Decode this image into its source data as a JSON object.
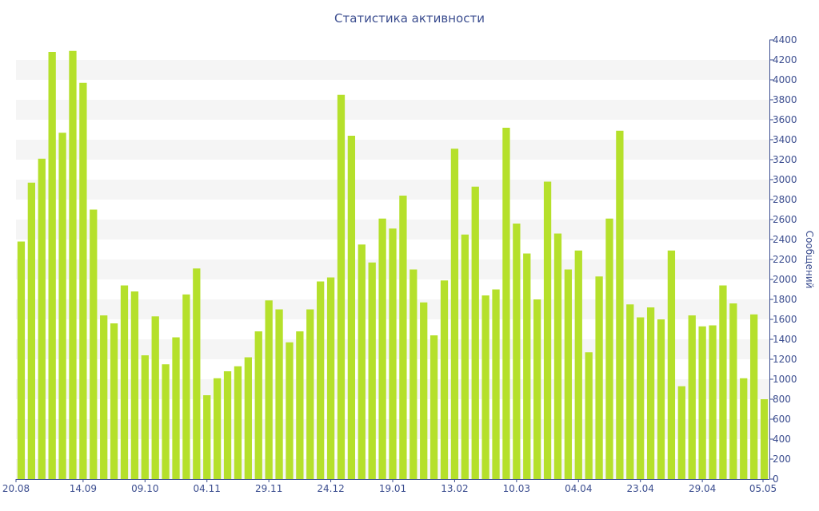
{
  "chart_data": {
    "type": "bar",
    "title": "Статистика активности",
    "ylabel": "Сообщений",
    "ylim": [
      0,
      4400
    ],
    "y_ticks": [
      0,
      200,
      400,
      600,
      800,
      1000,
      1200,
      1400,
      1600,
      1800,
      2000,
      2200,
      2400,
      2600,
      2800,
      3000,
      3200,
      3400,
      3600,
      3800,
      4000,
      4200,
      4400
    ],
    "x_tick_labels": [
      "20.08",
      "14.09",
      "09.10",
      "04.11",
      "29.11",
      "24.12",
      "19.01",
      "13.02",
      "10.03",
      "04.04",
      "23.04",
      "29.04",
      "05.05"
    ],
    "x_tick_bar_index": [
      0,
      6,
      12,
      18,
      24,
      30,
      36,
      42,
      48,
      54,
      60,
      66,
      72
    ],
    "bar_color": "#b5e02b",
    "grid": "horizontal alternating bands",
    "y_axis_position": "right",
    "values": [
      2380,
      2970,
      3210,
      4280,
      3470,
      4290,
      3970,
      2700,
      1640,
      1560,
      1940,
      1880,
      1240,
      1630,
      1150,
      1420,
      1850,
      2110,
      840,
      1010,
      1080,
      1130,
      1220,
      1480,
      1790,
      1700,
      1370,
      1480,
      1700,
      1980,
      2020,
      3850,
      3440,
      2350,
      2170,
      2610,
      2510,
      2840,
      2100,
      1770,
      1440,
      1990,
      3310,
      2450,
      2930,
      1840,
      1900,
      3520,
      2560,
      2260,
      1800,
      2980,
      2460,
      2100,
      2290,
      1270,
      2030,
      2610,
      3490,
      1750,
      1620,
      1720,
      1600,
      2290,
      930,
      1640,
      1530,
      1540,
      1940,
      1760,
      1010,
      1650,
      800
    ]
  }
}
